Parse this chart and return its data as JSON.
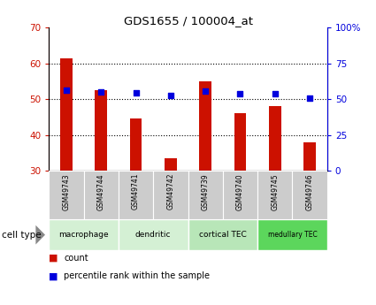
{
  "title": "GDS1655 / 100004_at",
  "samples": [
    "GSM49743",
    "GSM49744",
    "GSM49741",
    "GSM49742",
    "GSM49739",
    "GSM49740",
    "GSM49745",
    "GSM49746"
  ],
  "counts": [
    61.5,
    52.5,
    44.5,
    33.5,
    55.0,
    46.0,
    48.0,
    38.0
  ],
  "percentiles": [
    56,
    55,
    54.5,
    52.5,
    55.5,
    53.5,
    53.5,
    51
  ],
  "ylim_left": [
    30,
    70
  ],
  "ylim_right": [
    0,
    100
  ],
  "yticks_left": [
    30,
    40,
    50,
    60,
    70
  ],
  "yticks_right": [
    0,
    25,
    50,
    75,
    100
  ],
  "ytick_labels_right": [
    "0",
    "25",
    "50",
    "75",
    "100%"
  ],
  "cell_types": [
    {
      "label": "macrophage",
      "start": 0,
      "end": 2,
      "color": "#d4f0d4"
    },
    {
      "label": "dendritic",
      "start": 2,
      "end": 4,
      "color": "#d4f0d4"
    },
    {
      "label": "cortical TEC",
      "start": 4,
      "end": 6,
      "color": "#b8e6b8"
    },
    {
      "label": "medullary TEC",
      "start": 6,
      "end": 8,
      "color": "#5cd65c"
    }
  ],
  "bar_color": "#cc1100",
  "dot_color": "#0000dd",
  "bar_width": 0.35,
  "tick_label_color_left": "#cc1100",
  "tick_label_color_right": "#0000dd",
  "sample_box_color": "#cccccc",
  "cell_type_label": "cell type",
  "legend_count_label": "count",
  "legend_percentile_label": "percentile rank within the sample"
}
